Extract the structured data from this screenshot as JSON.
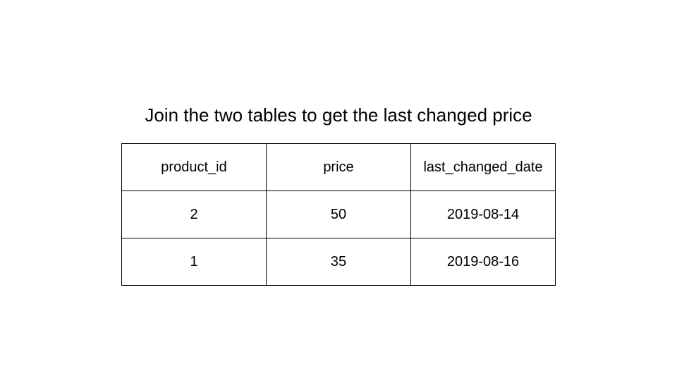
{
  "title": "Join the two tables to get the last changed price",
  "table": {
    "headers": [
      "product_id",
      "price",
      "last_changed_date"
    ],
    "rows": [
      [
        "2",
        "50",
        "2019-08-14"
      ],
      [
        "1",
        "35",
        "2019-08-16"
      ]
    ]
  }
}
